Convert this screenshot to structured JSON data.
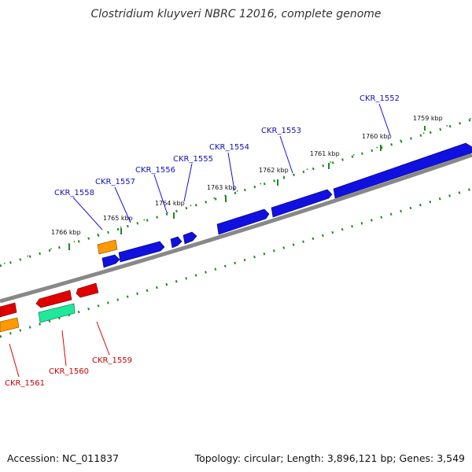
{
  "title": "Clostridium kluyveri NBRC 12016, complete genome",
  "footer": {
    "accession": "Accession: NC_011837",
    "summary": "Topology: circular; Length: 3,896,121 bp; Genes: 3,549"
  },
  "colors": {
    "backbone": "#888888",
    "ticks": "#1f8a1f",
    "forward_cds": "#1010e0",
    "reverse_cds": "#e00000",
    "rna": "#ff9900",
    "misc": "#20e89a",
    "forward_label": "#1010c0",
    "reverse_label": "#d00000"
  },
  "scale": [
    "1759 kbp",
    "1760 kbp",
    "1761 kbp",
    "1762 kbp",
    "1763 kbp",
    "1764 kbp",
    "1765 kbp",
    "1766 kbp"
  ],
  "forward_genes": [
    "CKR_1552",
    "CKR_1553",
    "CKR_1554",
    "CKR_1555",
    "CKR_1556",
    "CKR_1557",
    "CKR_1558"
  ],
  "reverse_genes": [
    "CKR_1559",
    "CKR_1560",
    "CKR_1561"
  ]
}
